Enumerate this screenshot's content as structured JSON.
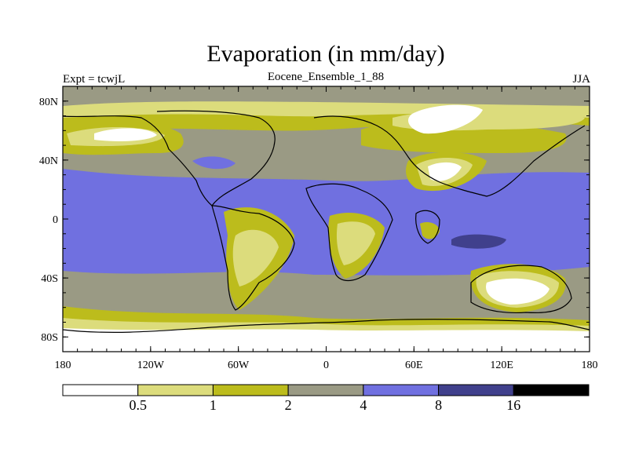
{
  "title": "Evaporation (in mm/day)",
  "left_label": "Expt = tcwjL",
  "center_label": "Eocene_Ensemble_1_88",
  "right_label": "JJA",
  "lat_ticks": [
    "80N",
    "40N",
    "0",
    "40S",
    "80S"
  ],
  "lon_ticks": [
    "180",
    "120W",
    "60W",
    "0",
    "60E",
    "120E",
    "180"
  ],
  "colorbar": {
    "colors": [
      "#ffffff",
      "#dcdc7c",
      "#bcbc1c",
      "#9a9a84",
      "#7070e0",
      "#40408c",
      "#000000"
    ],
    "labels": [
      "0.5",
      "1",
      "2",
      "4",
      "8",
      "16"
    ]
  },
  "fill_colors": {
    "white": "#ffffff",
    "light": "#dcdc7c",
    "olive": "#bcbc1c",
    "gray": "#9a9a84",
    "blue": "#7070e0",
    "dark": "#40408c"
  }
}
